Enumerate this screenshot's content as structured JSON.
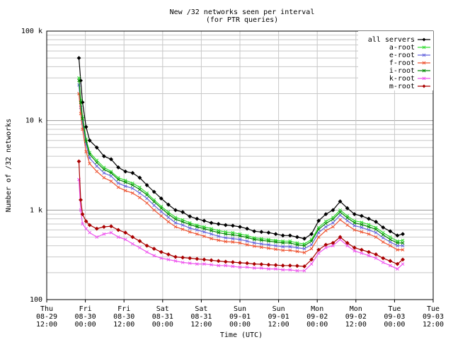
{
  "chart_data": {
    "type": "line",
    "title": "New /32 networks seen per interval",
    "subtitle": "(for PTR queries)",
    "xlabel": "Time (UTC)",
    "ylabel": "Number of /32 networks",
    "yscale": "log",
    "ylim": [
      100,
      100000
    ],
    "y_ticks": [
      {
        "value": 100,
        "label": "100"
      },
      {
        "value": 1000,
        "label": "1 k"
      },
      {
        "value": 10000,
        "label": "10 k"
      },
      {
        "value": 100000,
        "label": "100 k"
      }
    ],
    "xlim": [
      0,
      108
    ],
    "x_ticks": [
      {
        "day": "Thu",
        "date": "08-29",
        "time": "12:00"
      },
      {
        "day": "Fri",
        "date": "08-30",
        "time": "00:00"
      },
      {
        "day": "Fri",
        "date": "08-30",
        "time": "12:00"
      },
      {
        "day": "Sat",
        "date": "08-31",
        "time": "00:00"
      },
      {
        "day": "Sat",
        "date": "08-31",
        "time": "12:00"
      },
      {
        "day": "Sun",
        "date": "09-01",
        "time": "00:00"
      },
      {
        "day": "Sun",
        "date": "09-01",
        "time": "12:00"
      },
      {
        "day": "Mon",
        "date": "09-02",
        "time": "00:00"
      },
      {
        "day": "Mon",
        "date": "09-02",
        "time": "12:00"
      },
      {
        "day": "Tue",
        "date": "09-03",
        "time": "00:00"
      },
      {
        "day": "Tue",
        "date": "09-03",
        "time": "12:00"
      }
    ],
    "grid": true,
    "legend_position": "top-right",
    "x": [
      9,
      9.5,
      10,
      11,
      12,
      14,
      16,
      18,
      20,
      22,
      24,
      26,
      28,
      30,
      32,
      34,
      36,
      38,
      40,
      42,
      44,
      46,
      48,
      50,
      52,
      54,
      56,
      58,
      60,
      62,
      64,
      66,
      68,
      70,
      72,
      74,
      76,
      78,
      80,
      82,
      84,
      86,
      88,
      90,
      92,
      94,
      96,
      98,
      99.5
    ],
    "series": [
      {
        "name": "all servers",
        "color": "#000000",
        "marker": "diamond",
        "values": [
          50000,
          28000,
          16000,
          8500,
          6000,
          5000,
          4000,
          3700,
          3000,
          2700,
          2600,
          2300,
          1900,
          1600,
          1350,
          1150,
          1000,
          950,
          850,
          800,
          760,
          720,
          700,
          680,
          670,
          650,
          620,
          580,
          570,
          560,
          540,
          520,
          520,
          500,
          480,
          540,
          760,
          900,
          1000,
          1250,
          1050,
          900,
          860,
          800,
          740,
          640,
          580,
          520,
          540
        ]
      },
      {
        "name": "a-root",
        "color": "#33dd33",
        "marker": "x",
        "values": [
          30000,
          17000,
          11000,
          6200,
          4400,
          3600,
          3000,
          2700,
          2300,
          2150,
          2000,
          1800,
          1550,
          1300,
          1100,
          950,
          830,
          780,
          720,
          680,
          650,
          620,
          590,
          570,
          560,
          540,
          520,
          490,
          480,
          470,
          460,
          450,
          450,
          430,
          420,
          470,
          640,
          750,
          830,
          1000,
          860,
          760,
          730,
          690,
          640,
          560,
          500,
          450,
          460
        ]
      },
      {
        "name": "e-root",
        "color": "#6666dd",
        "marker": "x",
        "values": [
          25000,
          14000,
          9500,
          5400,
          3800,
          3100,
          2600,
          2400,
          2000,
          1850,
          1750,
          1550,
          1350,
          1130,
          960,
          830,
          720,
          680,
          630,
          600,
          570,
          540,
          510,
          490,
          480,
          470,
          450,
          430,
          420,
          410,
          400,
          390,
          390,
          380,
          370,
          410,
          560,
          650,
          720,
          880,
          760,
          670,
          640,
          600,
          560,
          490,
          440,
          400,
          400
        ]
      },
      {
        "name": "f-root",
        "color": "#ee5533",
        "marker": "x",
        "values": [
          20000,
          12000,
          8000,
          4500,
          3300,
          2700,
          2300,
          2100,
          1800,
          1650,
          1550,
          1380,
          1200,
          1000,
          860,
          740,
          650,
          610,
          570,
          540,
          510,
          480,
          460,
          445,
          440,
          430,
          410,
          395,
          385,
          375,
          365,
          355,
          355,
          345,
          335,
          370,
          500,
          590,
          650,
          780,
          680,
          600,
          570,
          540,
          500,
          440,
          400,
          360,
          360
        ]
      },
      {
        "name": "i-root",
        "color": "#008800",
        "marker": "x",
        "values": [
          28000,
          16000,
          10500,
          5900,
          4200,
          3400,
          2850,
          2600,
          2200,
          2050,
          1900,
          1700,
          1480,
          1240,
          1050,
          900,
          790,
          740,
          690,
          650,
          620,
          590,
          560,
          540,
          530,
          515,
          495,
          470,
          460,
          450,
          440,
          430,
          430,
          410,
          400,
          450,
          610,
          710,
          790,
          950,
          820,
          720,
          690,
          650,
          610,
          530,
          470,
          430,
          430
        ]
      },
      {
        "name": "k-root",
        "color": "#ee55ee",
        "marker": "x",
        "values": [
          2200,
          1000,
          700,
          620,
          560,
          500,
          540,
          560,
          500,
          470,
          420,
          380,
          340,
          310,
          290,
          280,
          270,
          260,
          255,
          250,
          250,
          245,
          240,
          240,
          235,
          230,
          230,
          225,
          225,
          220,
          220,
          215,
          215,
          210,
          210,
          250,
          330,
          380,
          400,
          470,
          400,
          350,
          330,
          310,
          290,
          260,
          240,
          220,
          250
        ]
      },
      {
        "name": "m-root",
        "color": "#aa0000",
        "marker": "diamond",
        "values": [
          3500,
          1300,
          900,
          750,
          680,
          620,
          650,
          660,
          600,
          560,
          500,
          450,
          400,
          370,
          340,
          320,
          300,
          295,
          290,
          285,
          280,
          275,
          270,
          265,
          262,
          258,
          255,
          250,
          248,
          245,
          243,
          240,
          240,
          238,
          235,
          280,
          360,
          410,
          430,
          500,
          430,
          380,
          360,
          340,
          320,
          290,
          270,
          250,
          280
        ]
      }
    ]
  }
}
